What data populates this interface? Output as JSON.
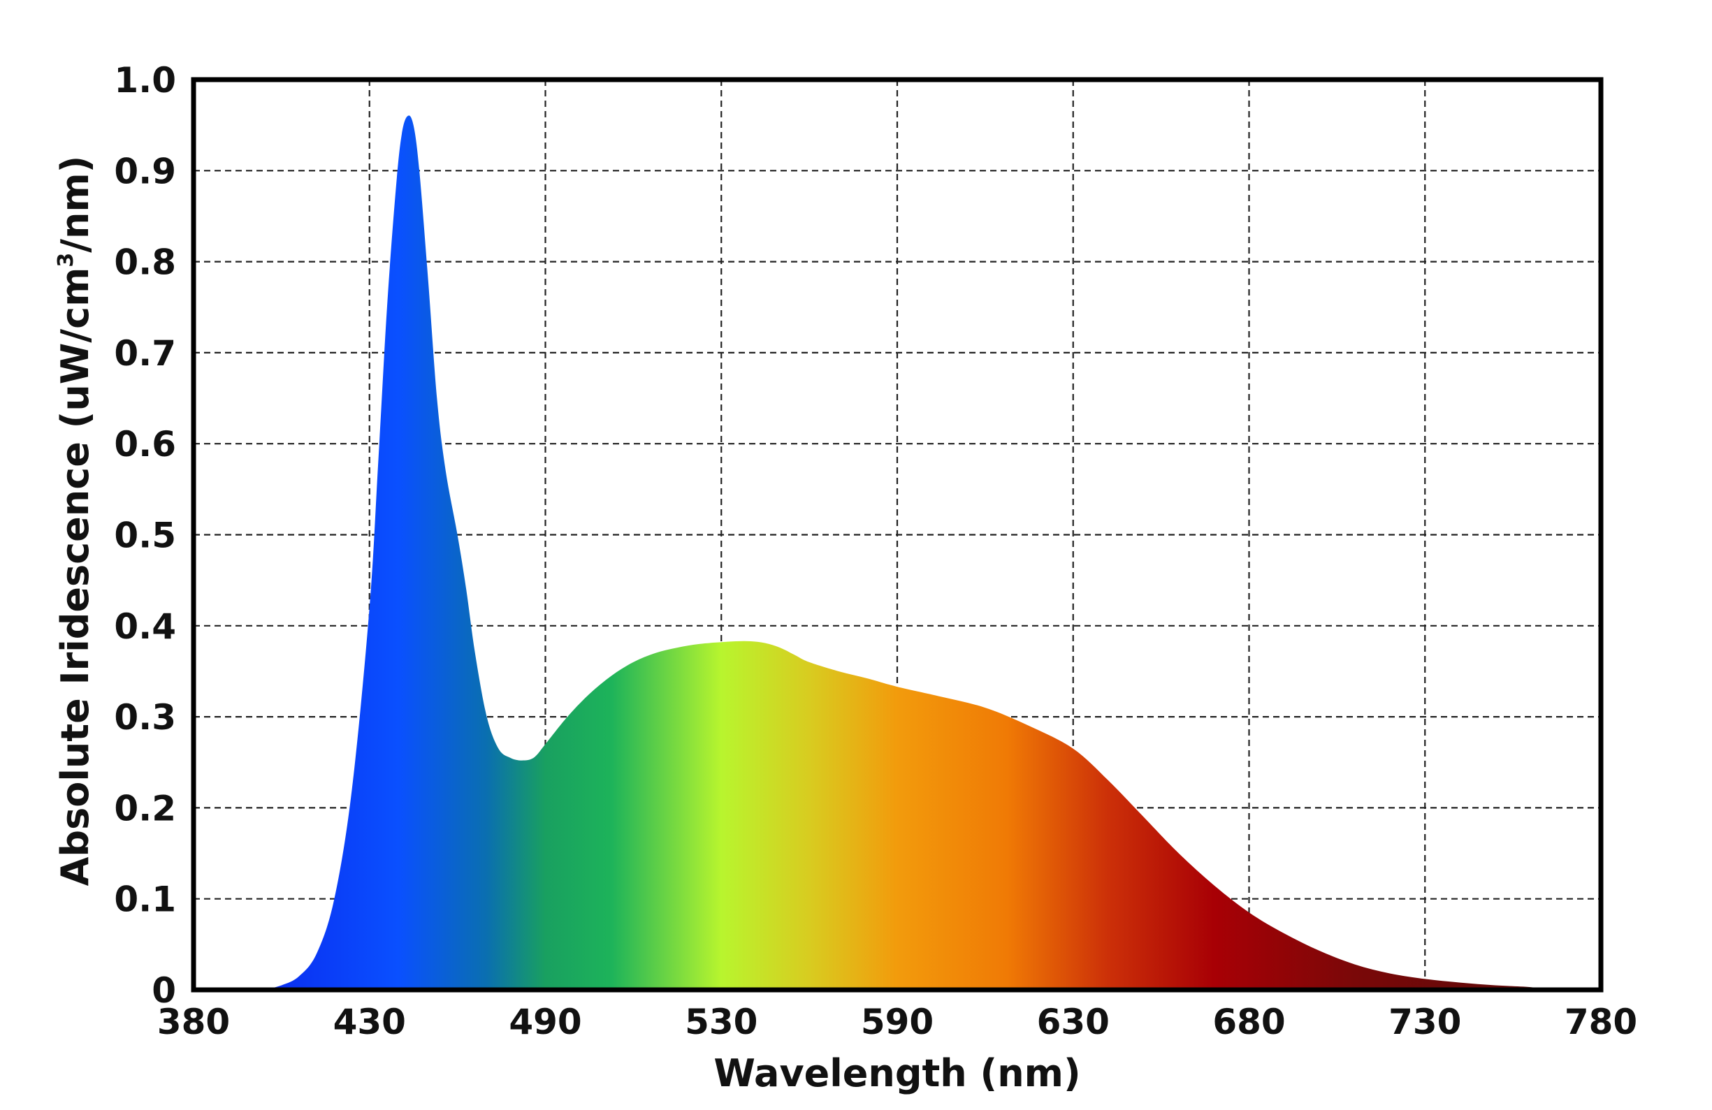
{
  "chart_data": {
    "type": "area",
    "xlabel": "Wavelength (nm)",
    "ylabel_main": "Absolute Iridescence (uW/cm",
    "ylabel_sup": "3",
    "ylabel_tail": "/nm)",
    "x_ticks": [
      "380",
      "430",
      "490",
      "530",
      "590",
      "630",
      "680",
      "730",
      "780"
    ],
    "y_ticks": [
      "0",
      "0.1",
      "0.2",
      "0.3",
      "0.4",
      "0.5",
      "0.6",
      "0.7",
      "0.8",
      "0.9",
      "1.0"
    ],
    "xlim": [
      380,
      780
    ],
    "ylim": [
      0,
      1.0
    ],
    "grid": true,
    "legend": false,
    "fill": "spectral gradient (blue to dark red)",
    "points": [
      [
        400,
        0.0
      ],
      [
        405,
        0.005
      ],
      [
        410,
        0.015
      ],
      [
        415,
        0.04
      ],
      [
        420,
        0.1
      ],
      [
        425,
        0.22
      ],
      [
        430,
        0.42
      ],
      [
        433,
        0.58
      ],
      [
        436,
        0.75
      ],
      [
        439,
        0.88
      ],
      [
        441,
        0.94
      ],
      [
        443,
        0.96
      ],
      [
        445,
        0.95
      ],
      [
        447,
        0.9
      ],
      [
        450,
        0.78
      ],
      [
        453,
        0.65
      ],
      [
        456,
        0.57
      ],
      [
        460,
        0.5
      ],
      [
        463,
        0.44
      ],
      [
        466,
        0.37
      ],
      [
        470,
        0.3
      ],
      [
        474,
        0.265
      ],
      [
        478,
        0.255
      ],
      [
        482,
        0.252
      ],
      [
        486,
        0.255
      ],
      [
        490,
        0.27
      ],
      [
        495,
        0.3
      ],
      [
        500,
        0.325
      ],
      [
        505,
        0.345
      ],
      [
        510,
        0.36
      ],
      [
        515,
        0.37
      ],
      [
        520,
        0.376
      ],
      [
        525,
        0.38
      ],
      [
        530,
        0.382
      ],
      [
        535,
        0.383
      ],
      [
        540,
        0.383
      ],
      [
        545,
        0.381
      ],
      [
        550,
        0.376
      ],
      [
        555,
        0.368
      ],
      [
        560,
        0.36
      ],
      [
        570,
        0.35
      ],
      [
        580,
        0.342
      ],
      [
        590,
        0.333
      ],
      [
        600,
        0.322
      ],
      [
        610,
        0.31
      ],
      [
        620,
        0.29
      ],
      [
        630,
        0.265
      ],
      [
        640,
        0.23
      ],
      [
        650,
        0.19
      ],
      [
        660,
        0.15
      ],
      [
        670,
        0.115
      ],
      [
        680,
        0.085
      ],
      [
        690,
        0.062
      ],
      [
        700,
        0.043
      ],
      [
        710,
        0.028
      ],
      [
        720,
        0.018
      ],
      [
        730,
        0.012
      ],
      [
        740,
        0.008
      ],
      [
        750,
        0.005
      ],
      [
        760,
        0.003
      ],
      [
        765,
        0.0
      ]
    ],
    "gradient_stops": [
      {
        "wavelength": 400,
        "color": "#0a2cf0"
      },
      {
        "wavelength": 440,
        "color": "#0a50ff"
      },
      {
        "wavelength": 470,
        "color": "#0a6fb0"
      },
      {
        "wavelength": 490,
        "color": "#19a060"
      },
      {
        "wavelength": 505,
        "color": "#1db35a"
      },
      {
        "wavelength": 530,
        "color": "#b8f52e"
      },
      {
        "wavelength": 560,
        "color": "#d8cc20"
      },
      {
        "wavelength": 590,
        "color": "#f29b0c"
      },
      {
        "wavelength": 615,
        "color": "#f07a05"
      },
      {
        "wavelength": 640,
        "color": "#cc3008"
      },
      {
        "wavelength": 670,
        "color": "#a80005"
      },
      {
        "wavelength": 710,
        "color": "#7a0808"
      },
      {
        "wavelength": 765,
        "color": "#5a0a0a"
      }
    ]
  }
}
